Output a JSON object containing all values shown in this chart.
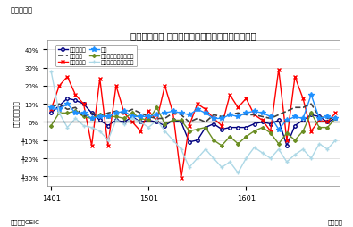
{
  "title": "シンガポール 製造業生産指数（分野別）の伸び率",
  "suptitle": "（図表４）",
  "ylabel": "（前年同月比）",
  "xlabel_left": "（資料）CEIC",
  "xlabel_right": "（月次）",
  "xtick_labels": [
    "1401",
    "1501",
    "1601"
  ],
  "xtick_positions": [
    0,
    12,
    24
  ],
  "ylim": [
    -35,
    45
  ],
  "yticks": [
    -30,
    -20,
    -10,
    0,
    10,
    20,
    30,
    40
  ],
  "ytick_labels": [
    "╀30%",
    "╀20%",
    "╀10%",
    "0%",
    "10%",
    "20%",
    "30%",
    "40%"
  ],
  "series_order": [
    "製造業生産",
    "バイオ医療",
    "精密エンジニアリング",
    "電子製品",
    "化学",
    "輸送エンジニアリング"
  ],
  "series": {
    "製造業生産": {
      "color": "#000080",
      "marker": "o",
      "linestyle": "-",
      "linewidth": 1.0,
      "markersize": 2.5,
      "markerfacecolor": "white",
      "values": [
        5,
        9,
        13,
        12,
        10,
        5,
        1,
        -2,
        1,
        0,
        3,
        0,
        1,
        0,
        -2,
        1,
        0,
        -11,
        -10,
        -3,
        -1,
        -4,
        -3,
        -3,
        -3,
        -1,
        0,
        -1,
        1,
        -13,
        -2,
        1,
        4,
        3,
        0,
        2
      ]
    },
    "バイオ医療": {
      "color": "#FF0000",
      "marker": "x",
      "linestyle": "-",
      "linewidth": 1.0,
      "markersize": 3.5,
      "markerfacecolor": "#FF0000",
      "values": [
        7,
        20,
        25,
        15,
        10,
        -13,
        24,
        -13,
        20,
        5,
        0,
        -5,
        6,
        1,
        20,
        5,
        -31,
        -2,
        10,
        7,
        2,
        -2,
        15,
        8,
        13,
        4,
        1,
        -5,
        29,
        -10,
        25,
        13,
        -5,
        1,
        0,
        5
      ]
    },
    "精密エンジニアリング": {
      "color": "#6B8E23",
      "marker": "D",
      "linestyle": "-",
      "linewidth": 1.0,
      "markersize": 2.0,
      "markerfacecolor": "#6B8E23",
      "values": [
        -2,
        5,
        5,
        6,
        3,
        2,
        4,
        3,
        3,
        2,
        5,
        2,
        1,
        8,
        -1,
        1,
        1,
        -5,
        -4,
        -3,
        -10,
        -13,
        -8,
        -12,
        -8,
        -5,
        -3,
        -6,
        -12,
        -6,
        -10,
        -5,
        5,
        -3,
        -3,
        2
      ]
    },
    "電子製品": {
      "color": "#404040",
      "marker": "None",
      "linestyle": "--",
      "linewidth": 1.2,
      "markersize": 0,
      "markerfacecolor": "#404040",
      "values": [
        8,
        10,
        7,
        8,
        3,
        5,
        3,
        5,
        6,
        5,
        7,
        5,
        3,
        2,
        2,
        5,
        4,
        0,
        2,
        0,
        4,
        3,
        4,
        5,
        4,
        4,
        3,
        2,
        4,
        6,
        8,
        8,
        10,
        3,
        2,
        2
      ]
    },
    "化学": {
      "color": "#1E90FF",
      "marker": "*",
      "linestyle": "-",
      "linewidth": 1.0,
      "markersize": 4,
      "markerfacecolor": "#1E90FF",
      "values": [
        8,
        7,
        10,
        5,
        5,
        2,
        3,
        3,
        5,
        6,
        3,
        3,
        3,
        4,
        5,
        6,
        5,
        4,
        7,
        5,
        2,
        2,
        4,
        3,
        5,
        6,
        5,
        3,
        -4,
        1,
        3,
        2,
        15,
        2,
        3,
        2
      ]
    },
    "輸送エンジニアリング": {
      "color": "#ADD8E6",
      "marker": "+",
      "linestyle": "-",
      "linewidth": 1.0,
      "markersize": 3.5,
      "markerfacecolor": "#ADD8E6",
      "values": [
        28,
        5,
        -3,
        2,
        -2,
        -3,
        -5,
        -10,
        1,
        -1,
        2,
        0,
        -3,
        1,
        -5,
        -10,
        -15,
        -25,
        -20,
        -15,
        -20,
        -25,
        -22,
        -28,
        -20,
        -14,
        -17,
        -20,
        -15,
        -22,
        -18,
        -15,
        -20,
        -12,
        -15,
        -10
      ]
    }
  }
}
